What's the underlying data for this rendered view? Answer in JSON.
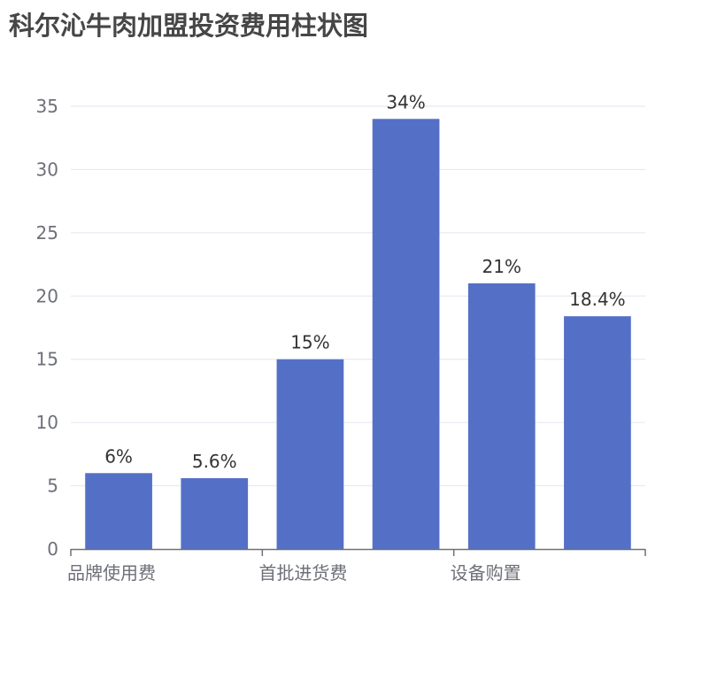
{
  "chart_data": {
    "type": "bar",
    "title": "科尔沁牛肉加盟投资费用柱状图",
    "categories": [
      "品牌使用费",
      "",
      "首批进货费",
      "",
      "设备购置",
      ""
    ],
    "values": [
      6,
      5.6,
      15,
      34,
      21,
      18.4
    ],
    "data_labels": [
      "6%",
      "5.6%",
      "15%",
      "34%",
      "21%",
      "18.4%"
    ],
    "ylim": [
      0,
      35
    ],
    "yticks": [
      "0",
      "5",
      "10",
      "15",
      "20",
      "25",
      "30",
      "35"
    ],
    "xlabel": "",
    "ylabel": "",
    "grid": true,
    "colors": {
      "bar": "#5470c6",
      "grid": "#e0e6f1",
      "axis": "#6e7079",
      "label": "#333333"
    }
  }
}
